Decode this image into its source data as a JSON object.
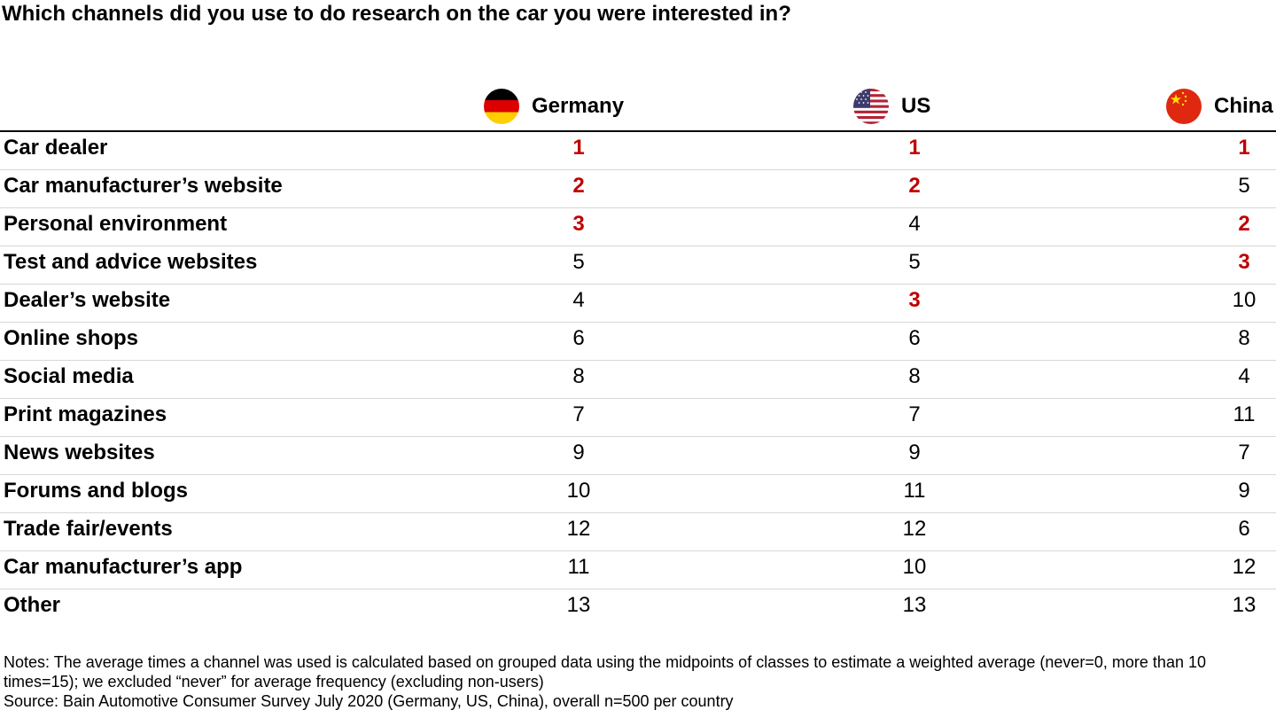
{
  "title": "Which channels did you use to do research on the car you were interested in?",
  "accent_color": "#c00000",
  "columns": [
    {
      "name": "Germany",
      "flag_icon": "germany-flag-icon"
    },
    {
      "name": "US",
      "flag_icon": "us-flag-icon"
    },
    {
      "name": "China",
      "flag_icon": "china-flag-icon"
    }
  ],
  "chart_data": {
    "type": "table",
    "title": "Which channels did you use to do research on the car you were interested in?",
    "columns": [
      "Germany",
      "US",
      "China"
    ],
    "highlight": "Ranks 1-3 in each country shown in bold red",
    "rows": [
      {
        "label": "Car dealer",
        "values": [
          1,
          1,
          1
        ]
      },
      {
        "label": "Car manufacturer’s website",
        "values": [
          2,
          2,
          5
        ]
      },
      {
        "label": "Personal environment",
        "values": [
          3,
          4,
          2
        ]
      },
      {
        "label": "Test and advice websites",
        "values": [
          5,
          5,
          3
        ]
      },
      {
        "label": "Dealer’s website",
        "values": [
          4,
          3,
          10
        ]
      },
      {
        "label": "Online shops",
        "values": [
          6,
          6,
          8
        ]
      },
      {
        "label": "Social media",
        "values": [
          8,
          8,
          4
        ]
      },
      {
        "label": "Print magazines",
        "values": [
          7,
          7,
          11
        ]
      },
      {
        "label": "News websites",
        "values": [
          9,
          9,
          7
        ]
      },
      {
        "label": "Forums and blogs",
        "values": [
          10,
          11,
          9
        ]
      },
      {
        "label": "Trade fair/events",
        "values": [
          12,
          12,
          6
        ]
      },
      {
        "label": "Car manufacturer’s app",
        "values": [
          11,
          10,
          12
        ]
      },
      {
        "label": "Other",
        "values": [
          13,
          13,
          13
        ]
      }
    ]
  },
  "notes": {
    "line1": "Notes: The average times a channel was used is calculated based on grouped data using the midpoints of classes to estimate a weighted average (never=0, more than 10 times=15); we excluded “never” for average frequency (excluding non-users)",
    "line2": "Source: Bain Automotive Consumer Survey July 2020 (Germany, US, China), overall n=500 per country"
  }
}
